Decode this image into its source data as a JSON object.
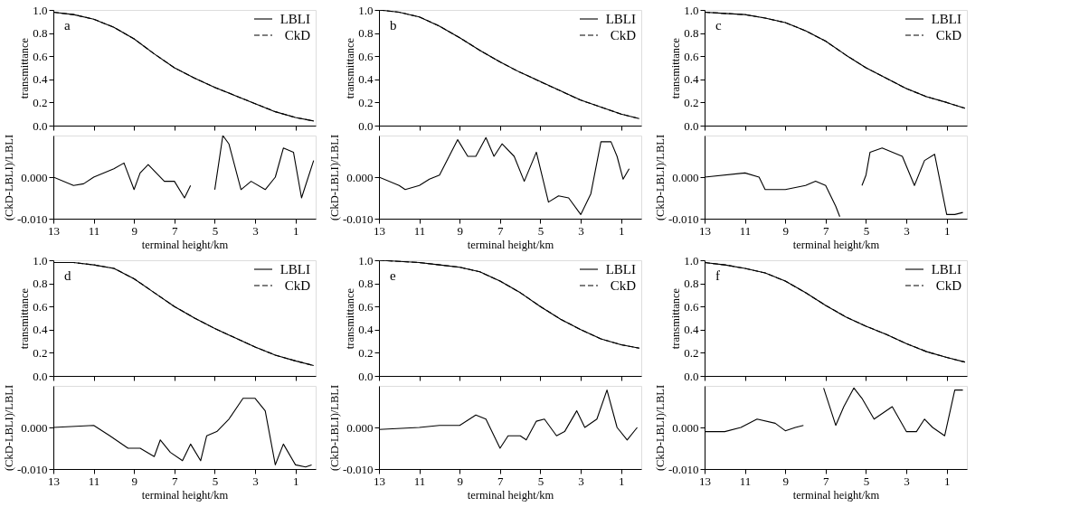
{
  "chart_data": [
    {
      "type": "line",
      "ylabel": "transmittance",
      "annotations": [
        "a"
      ],
      "xlim": [
        13,
        0
      ],
      "xticks": [
        13,
        11,
        9,
        7,
        5,
        3,
        1
      ],
      "ylim": [
        0,
        1.0
      ],
      "yticks": [
        {
          "value": 0,
          "label": "0.0"
        },
        {
          "value": 0.2,
          "label": "0.2"
        },
        {
          "value": 0.4,
          "label": "0.4"
        },
        {
          "value": 0.6,
          "label": "0.6"
        },
        {
          "value": 0.8,
          "label": "0.8"
        },
        {
          "value": 1,
          "label": "1.0"
        }
      ],
      "tick_labels": "y",
      "legend": "top right",
      "x": [
        13,
        12,
        11,
        10,
        9,
        8,
        7,
        6,
        5,
        4,
        3,
        2,
        1,
        0.1
      ],
      "series": [
        {
          "name": "LBLI",
          "color": "#000000",
          "line_style": "solid",
          "values": [
            0.98,
            0.96,
            0.92,
            0.85,
            0.75,
            0.62,
            0.5,
            0.41,
            0.33,
            0.26,
            0.19,
            0.12,
            0.07,
            0.04
          ]
        },
        {
          "name": "CkD",
          "color": "#000000",
          "line_style": "dashed",
          "values": [
            0.98,
            0.96,
            0.92,
            0.85,
            0.75,
            0.62,
            0.5,
            0.41,
            0.33,
            0.26,
            0.19,
            0.12,
            0.07,
            0.04
          ]
        }
      ]
    },
    {
      "type": "line",
      "xlabel": "terminal height/km",
      "ylabel": "(CkD-LBLI)/LBLI",
      "xlim": [
        13,
        0
      ],
      "xticks": [
        13,
        11,
        9,
        7,
        5,
        3,
        1
      ],
      "ylim": [
        -0.01,
        0.01
      ],
      "yticks": [
        {
          "value": 0,
          "label": "0.000"
        },
        {
          "value": -0.01,
          "label": "-0.010"
        }
      ],
      "x": [
        13,
        12,
        11.5,
        11,
        10,
        9.5,
        9,
        8.7,
        8.3,
        7.5,
        7,
        6.5,
        6.2,
        5.6,
        5,
        4.6,
        4.3,
        3.7,
        3.2,
        2.5,
        2,
        1.6,
        1.1,
        0.7,
        0.1
      ],
      "series": [
        {
          "color": "#000000",
          "values": [
            0.0,
            -0.002,
            -0.0016,
            0.0,
            0.002,
            0.0034,
            -0.003,
            0.001,
            0.003,
            -0.001,
            -0.001,
            -0.005,
            -0.002,
            null,
            -0.003,
            0.01,
            0.008,
            -0.003,
            -0.001,
            -0.003,
            0.0,
            0.007,
            0.006,
            -0.005,
            0.004
          ]
        }
      ]
    },
    {
      "type": "line",
      "ylabel": "transmittance",
      "annotations": [
        "b"
      ],
      "xlim": [
        13,
        0
      ],
      "xticks": [
        13,
        11,
        9,
        7,
        5,
        3,
        1
      ],
      "ylim": [
        0,
        1.0
      ],
      "yticks": [
        {
          "value": 0,
          "label": "0.0"
        },
        {
          "value": 0.2,
          "label": "0.2"
        },
        {
          "value": 0.4,
          "label": "0.4"
        },
        {
          "value": 0.6,
          "label": "0.6"
        },
        {
          "value": 0.8,
          "label": "0.8"
        },
        {
          "value": 1,
          "label": "1.0"
        }
      ],
      "tick_labels": "y",
      "legend": "top right",
      "x": [
        13,
        12,
        11,
        10,
        9,
        8,
        7,
        6,
        5,
        4,
        3,
        2,
        1,
        0.1
      ],
      "series": [
        {
          "name": "LBLI",
          "color": "#000000",
          "line_style": "solid",
          "values": [
            1.0,
            0.98,
            0.94,
            0.86,
            0.76,
            0.65,
            0.55,
            0.46,
            0.38,
            0.3,
            0.22,
            0.16,
            0.1,
            0.06
          ]
        },
        {
          "name": "CkD",
          "color": "#000000",
          "line_style": "dashed",
          "values": [
            1.0,
            0.98,
            0.94,
            0.86,
            0.76,
            0.65,
            0.55,
            0.46,
            0.38,
            0.3,
            0.22,
            0.16,
            0.1,
            0.06
          ]
        }
      ]
    },
    {
      "type": "line",
      "xlabel": "terminal height/km",
      "ylabel": "(CkD-LBLI)/LBLI",
      "xlim": [
        13,
        0
      ],
      "xticks": [
        13,
        11,
        9,
        7,
        5,
        3,
        1
      ],
      "ylim": [
        -0.01,
        0.01
      ],
      "yticks": [
        {
          "value": 0,
          "label": "0.000"
        },
        {
          "value": -0.01,
          "label": "-0.010"
        }
      ],
      "x": [
        13,
        12,
        11.7,
        11,
        10.5,
        10,
        9.1,
        8.6,
        8.2,
        7.7,
        7.3,
        6.9,
        6.3,
        5.8,
        5.2,
        4.6,
        4.1,
        3.6,
        3,
        2.5,
        2,
        1.5,
        1.2,
        0.9,
        0.6
      ],
      "series": [
        {
          "color": "#000000",
          "values": [
            0.0,
            -0.002,
            -0.003,
            -0.002,
            -0.0005,
            0.0005,
            0.009,
            0.005,
            0.005,
            0.0095,
            0.005,
            0.008,
            0.005,
            -0.001,
            0.006,
            -0.006,
            -0.0045,
            -0.005,
            -0.009,
            -0.004,
            0.0085,
            0.0085,
            0.005,
            -0.0005,
            0.002
          ]
        }
      ]
    },
    {
      "type": "line",
      "ylabel": "transmittance",
      "annotations": [
        "c"
      ],
      "xlim": [
        13,
        0
      ],
      "xticks": [
        13,
        11,
        9,
        7,
        5,
        3,
        1
      ],
      "ylim": [
        0,
        1.0
      ],
      "yticks": [
        {
          "value": 0,
          "label": "0.0"
        },
        {
          "value": 0.2,
          "label": "0.2"
        },
        {
          "value": 0.4,
          "label": "0.4"
        },
        {
          "value": 0.6,
          "label": "0.6"
        },
        {
          "value": 0.8,
          "label": "0.8"
        },
        {
          "value": 1,
          "label": "1.0"
        }
      ],
      "tick_labels": "y",
      "legend": "top right",
      "x": [
        13,
        12,
        11,
        10,
        9,
        8,
        7,
        6,
        5,
        4,
        3,
        2,
        1,
        0.1
      ],
      "series": [
        {
          "name": "LBLI",
          "color": "#000000",
          "line_style": "solid",
          "values": [
            0.98,
            0.97,
            0.96,
            0.93,
            0.89,
            0.82,
            0.73,
            0.61,
            0.5,
            0.41,
            0.32,
            0.25,
            0.2,
            0.15
          ]
        },
        {
          "name": "CkD",
          "color": "#000000",
          "line_style": "dashed",
          "values": [
            0.98,
            0.97,
            0.96,
            0.93,
            0.89,
            0.82,
            0.73,
            0.61,
            0.5,
            0.41,
            0.32,
            0.25,
            0.2,
            0.15
          ]
        }
      ]
    },
    {
      "type": "line",
      "xlabel": "terminal height/km",
      "ylabel": "(CkD-LBLI)/LBLI",
      "xlim": [
        13,
        0
      ],
      "xticks": [
        13,
        11,
        9,
        7,
        5,
        3,
        1
      ],
      "ylim": [
        -0.01,
        0.01
      ],
      "yticks": [
        {
          "value": 0,
          "label": "0.000"
        },
        {
          "value": -0.01,
          "label": "-0.010"
        }
      ],
      "x": [
        13,
        11,
        10.3,
        10,
        9,
        8,
        7.5,
        7,
        6.5,
        6.3,
        5.8,
        5.2,
        5,
        4.8,
        4.2,
        3.2,
        2.6,
        2.1,
        1.6,
        1.0,
        0.6,
        0.2
      ],
      "series": [
        {
          "color": "#000000",
          "values": [
            0.0,
            0.001,
            0.0,
            -0.003,
            -0.003,
            -0.002,
            -0.001,
            -0.002,
            -0.007,
            -0.0095,
            null,
            -0.002,
            0.0005,
            0.006,
            0.007,
            0.005,
            -0.002,
            0.004,
            0.0055,
            -0.009,
            -0.009,
            -0.0085
          ]
        }
      ]
    },
    {
      "type": "line",
      "ylabel": "transmittance",
      "annotations": [
        "d"
      ],
      "xlim": [
        13,
        0
      ],
      "xticks": [
        13,
        11,
        9,
        7,
        5,
        3,
        1
      ],
      "ylim": [
        0,
        1.0
      ],
      "yticks": [
        {
          "value": 0,
          "label": "0.0"
        },
        {
          "value": 0.2,
          "label": "0.2"
        },
        {
          "value": 0.4,
          "label": "0.4"
        },
        {
          "value": 0.6,
          "label": "0.6"
        },
        {
          "value": 0.8,
          "label": "0.8"
        },
        {
          "value": 1,
          "label": "1.0"
        }
      ],
      "tick_labels": "y",
      "legend": "top right",
      "x": [
        13,
        12,
        11,
        10,
        9,
        8,
        7,
        6,
        5,
        4,
        3,
        2,
        1,
        0.1
      ],
      "series": [
        {
          "name": "LBLI",
          "color": "#000000",
          "line_style": "solid",
          "values": [
            0.98,
            0.98,
            0.96,
            0.93,
            0.84,
            0.72,
            0.6,
            0.5,
            0.41,
            0.33,
            0.25,
            0.18,
            0.13,
            0.09
          ]
        },
        {
          "name": "CkD",
          "color": "#000000",
          "line_style": "dashed",
          "values": [
            0.98,
            0.98,
            0.96,
            0.93,
            0.84,
            0.72,
            0.6,
            0.5,
            0.41,
            0.33,
            0.25,
            0.18,
            0.13,
            0.09
          ]
        }
      ]
    },
    {
      "type": "line",
      "xlabel": "terminal height/km",
      "ylabel": "(CkD-LBLI)/LBLI",
      "xlim": [
        13,
        0
      ],
      "xticks": [
        13,
        11,
        9,
        7,
        5,
        3,
        1
      ],
      "ylim": [
        -0.01,
        0.01
      ],
      "yticks": [
        {
          "value": 0,
          "label": "0.000"
        },
        {
          "value": -0.01,
          "label": "-0.010"
        }
      ],
      "x": [
        13,
        11,
        10.2,
        9.3,
        8.7,
        8,
        7.7,
        7.2,
        6.6,
        6.2,
        5.7,
        5.4,
        4.9,
        4.3,
        3.6,
        3.0,
        2.5,
        2.0,
        1.6,
        1.0,
        0.5,
        0.2
      ],
      "series": [
        {
          "color": "#000000",
          "values": [
            0.0,
            0.0005,
            -0.002,
            -0.005,
            -0.005,
            -0.007,
            -0.003,
            -0.006,
            -0.008,
            -0.004,
            -0.008,
            -0.002,
            -0.001,
            0.002,
            0.007,
            0.007,
            0.004,
            -0.009,
            -0.004,
            -0.009,
            -0.0095,
            -0.009
          ]
        }
      ]
    },
    {
      "type": "line",
      "ylabel": "transmittance",
      "annotations": [
        "e"
      ],
      "xlim": [
        13,
        0
      ],
      "xticks": [
        13,
        11,
        9,
        7,
        5,
        3,
        1
      ],
      "ylim": [
        0,
        1.0
      ],
      "yticks": [
        {
          "value": 0,
          "label": "0.0"
        },
        {
          "value": 0.2,
          "label": "0.2"
        },
        {
          "value": 0.4,
          "label": "0.4"
        },
        {
          "value": 0.6,
          "label": "0.6"
        },
        {
          "value": 0.8,
          "label": "0.8"
        },
        {
          "value": 1,
          "label": "1.0"
        }
      ],
      "tick_labels": "y",
      "legend": "top right",
      "x": [
        13,
        12,
        11,
        10,
        9,
        8,
        7,
        6,
        5,
        4,
        3,
        2,
        1,
        0.1
      ],
      "series": [
        {
          "name": "LBLI",
          "color": "#000000",
          "line_style": "solid",
          "values": [
            1.0,
            0.99,
            0.98,
            0.96,
            0.94,
            0.9,
            0.82,
            0.72,
            0.6,
            0.49,
            0.4,
            0.32,
            0.27,
            0.24
          ]
        },
        {
          "name": "CkD",
          "color": "#000000",
          "line_style": "dashed",
          "values": [
            1.0,
            0.99,
            0.98,
            0.96,
            0.94,
            0.9,
            0.82,
            0.72,
            0.6,
            0.49,
            0.4,
            0.32,
            0.27,
            0.24
          ]
        }
      ]
    },
    {
      "type": "line",
      "xlabel": "terminal height/km",
      "ylabel": "(CkD-LBLI)/LBLI",
      "xlim": [
        13,
        0
      ],
      "xticks": [
        13,
        11,
        9,
        7,
        5,
        3,
        1
      ],
      "ylim": [
        -0.01,
        0.01
      ],
      "yticks": [
        {
          "value": 0,
          "label": "0.000"
        },
        {
          "value": -0.01,
          "label": "-0.010"
        }
      ],
      "x": [
        13,
        11,
        10,
        9,
        8.2,
        7.7,
        7,
        6.6,
        6,
        5.7,
        5.2,
        4.8,
        4.2,
        3.8,
        3.2,
        2.8,
        2.2,
        1.7,
        1.2,
        0.7,
        0.2
      ],
      "series": [
        {
          "color": "#000000",
          "values": [
            -0.0005,
            0.0,
            0.0005,
            0.0005,
            0.003,
            0.002,
            -0.005,
            -0.002,
            -0.002,
            -0.003,
            0.0015,
            0.002,
            -0.002,
            -0.001,
            0.004,
            0.0,
            0.002,
            0.009,
            0.0,
            -0.003,
            0.0
          ]
        }
      ]
    },
    {
      "type": "line",
      "ylabel": "transmittance",
      "annotations": [
        "f"
      ],
      "xlim": [
        13,
        0
      ],
      "xticks": [
        13,
        11,
        9,
        7,
        5,
        3,
        1
      ],
      "ylim": [
        0,
        1.0
      ],
      "yticks": [
        {
          "value": 0,
          "label": "0.0"
        },
        {
          "value": 0.2,
          "label": "0.2"
        },
        {
          "value": 0.4,
          "label": "0.4"
        },
        {
          "value": 0.6,
          "label": "0.6"
        },
        {
          "value": 0.8,
          "label": "0.8"
        },
        {
          "value": 1,
          "label": "1.0"
        }
      ],
      "tick_labels": "y",
      "legend": "top right",
      "x": [
        13,
        12,
        11,
        10,
        9,
        8,
        7,
        6,
        5,
        4,
        3,
        2,
        1,
        0.1
      ],
      "series": [
        {
          "name": "LBLI",
          "color": "#000000",
          "line_style": "solid",
          "values": [
            0.98,
            0.96,
            0.93,
            0.89,
            0.82,
            0.72,
            0.61,
            0.51,
            0.43,
            0.36,
            0.28,
            0.21,
            0.16,
            0.12
          ]
        },
        {
          "name": "CkD",
          "color": "#000000",
          "line_style": "dashed",
          "values": [
            0.98,
            0.96,
            0.93,
            0.89,
            0.82,
            0.72,
            0.61,
            0.51,
            0.43,
            0.36,
            0.28,
            0.21,
            0.16,
            0.12
          ]
        }
      ]
    },
    {
      "type": "line",
      "xlabel": "terminal height/km",
      "ylabel": "(CkD-LBLI)/LBLI",
      "xlim": [
        13,
        0
      ],
      "xticks": [
        13,
        11,
        9,
        7,
        5,
        3,
        1
      ],
      "ylim": [
        -0.01,
        0.01
      ],
      "yticks": [
        {
          "value": 0,
          "label": "0.000"
        },
        {
          "value": -0.01,
          "label": "-0.010"
        }
      ],
      "x": [
        13,
        12,
        11.2,
        10.4,
        9.5,
        9,
        8.5,
        8.1,
        7.6,
        7.1,
        6.5,
        6.1,
        5.6,
        5.2,
        4.6,
        3.7,
        3,
        2.5,
        2.1,
        1.7,
        1.1,
        0.6,
        0.2
      ],
      "series": [
        {
          "color": "#000000",
          "values": [
            -0.001,
            -0.001,
            0.0,
            0.002,
            0.001,
            -0.0008,
            0.0,
            0.0005,
            null,
            0.0095,
            0.0005,
            0.005,
            0.0095,
            0.007,
            0.002,
            0.005,
            -0.001,
            -0.001,
            0.002,
            0.0,
            -0.002,
            0.009,
            0.009
          ]
        }
      ]
    }
  ]
}
